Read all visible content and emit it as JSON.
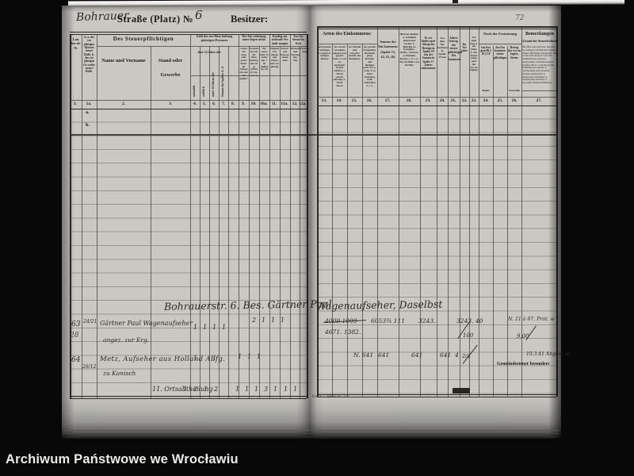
{
  "watermark": "Archiwum Państwowe we Wrocławiu",
  "page_number": "72",
  "left": {
    "title": {
      "street_hand": "Bohrauer",
      "street_print": "Straße (Platz) №",
      "house_hand": "6",
      "owner": "Besitzer:"
    },
    "hdr": {
      "c1": "Lau fen de №",
      "c1a": "№ a. der vor jährigen Klassen steuer Rolle, b. der vor jährigen Ge werbe steuer Rolle.",
      "g2": "Des Steuerpflichtigen",
      "c2": "Name und Vorname",
      "c3": "Stand oder Gewerbe",
      "g4": "Zahl der zur Haus haltung gehörigen Personen",
      "g4sub": "über 14 Jahre alte",
      "vcols": [
        "männlich",
        "weiblich",
        "unter 14 Jahren alte",
        "Summe der Spalten 4—6"
      ],
      "g8": "Der Ein schätzung unter liegen nicht:",
      "g10": "Künftig ent stehende Ver ände rungen",
      "g11": "Von der Steuer be freit",
      "dense": [
        "wegen Ver trags oder gesetz licher Be freiung ein zeln auf geführt",
        "Gesinde, das bei der Haus haltung mit ein ge schätzt ist (Sp. 4 u. 7)",
        "Per sonen über 14 Jahre (Sp. 7 ab züglich Sp. 10)",
        "Mögliche Ein nahme und Dienst holz ver gütung",
        "Besatz und Klassen steuer stufe",
        "Rechnung und Vierung (Sp. 10a)",
        "Frei stel lung"
      ]
    },
    "nums": [
      "1.",
      "1a.",
      "2.",
      "3.",
      "4.",
      "5.",
      "6.",
      "7.",
      "8.",
      "9.",
      "10.",
      "10a.",
      "11.",
      "11a.",
      "12.",
      "12a."
    ],
    "letters": [
      "a.",
      "b."
    ],
    "script_line": "Bohrauerstr. 6. Bes. Gärtner Paul",
    "rows": [
      {
        "no": "63",
        "no2": "28",
        "prev": "24/21",
        "name1": "Gärtner Paul Wagenaufseher",
        "name2": "angez. zur Erg.",
        "t": [
          "1",
          "1",
          "1",
          "1"
        ],
        "u": [
          "2",
          "1",
          "1",
          "1"
        ]
      },
      {
        "no": "64",
        "prev": "26/12",
        "name1": "Metz, Aufseher aus Holland Abfg.",
        "name2": "zu Kanisch",
        "t": [
          "1",
          "1"
        ],
        "v": [
          "1",
          "1",
          "1"
        ]
      }
    ],
    "summary": {
      "label": "11. Ortsabtheilung",
      "values": [
        "1",
        "2",
        "1",
        "2",
        "1",
        "1",
        "1",
        "3",
        "1",
        "1",
        "1"
      ]
    }
  },
  "right": {
    "hdr": {
      "g13": "Arten des Einkommens:",
      "dense": [
        "aus Kapital vermögen, a. ewigen, b. zeitigen Renten",
        "aus Grund vermögen, eigenen und gepach teten, so wie ver pachteten Grund stücken, a. Wirth schafts nutzung, b. Pacht zinsen",
        "aus Handel und Gewerbe einschl. des Bergbaues",
        "aus gewinn bringender Beschäfti gung, Rechten und Bezügen jeder Art, a. Lohn, b. in freier Wohnung, Geld, Viktualien u. s. w."
      ],
      "c17": "Summe des Ein kommens (Spalte 13, 14, 15, 16)",
      "c18": "Hiervon Abzüge: a. Schulden zinsen und Lasten, b. Beiträge zu Kranken-, Sterbe-, Witwen- u. Pensions kassen, c. u. s. w. bis zur Höhe von 50 Thlr.",
      "c19": "Es ver bleibt nach Abzug der Beträge in Spalte 18 von der Summe in Spalte 17 Jahres einkommen",
      "c20": "Von dem Ein kommen in Spalte 19 frei",
      "c21": "Jahres betrag des steuer pflichtigen Ein kommens",
      "c22": "Im Vor jahre",
      "c23": "Ver ände rung a. der Stufe, b. des Steuer satzes nach der Ver an lagung",
      "g24": "Nach der Festsetzung",
      "c24": "hat fest gestellt § 18 § 19",
      "c25": "des Ein kommen steuer pflichtigen",
      "c26": "Betrag der ver an lagten Steuer",
      "c24b": "Thaler",
      "c26b": "Groschen",
      "bem_title": "Bemerkungen",
      "bem_sub": "(Grund der Steuerfreiheit)",
      "bem_nb": "NB. Hier sind auch bei den einer ver anlagten schriftlichen Gründe Steuer pflichtigen anzugeben. Auf solche sind die §§ 17 des Ein kommensteuer gesetzes anzuwenden. Nachzuweisende Gründe durch: 1. Nachweis mit Erklärung des Wirths; 2. Veranlagung zum Gewerbe betriebe anderwärts; 3. anderweiter Wohnsitz; 4. Verpflegung auswärts; 5. besondere Dienstverhältnisse."
    },
    "nums": [
      "13.",
      "14.",
      "15.",
      "16.",
      "17.",
      "18.",
      "19.",
      "20.",
      "21.",
      "22.",
      "23.",
      "24.",
      "25.",
      "26.",
      "27."
    ],
    "script_line": "Wagenaufseher, Daselbst",
    "rows": [
      {
        "a": "4009 1009",
        "a2": "4671. 1382.",
        "b": "6053¾ 111",
        "c": "3243.",
        "d": "3243. 40",
        "e": "100",
        "f": "N. 11 à 67. Prot. w",
        "g": "9,00"
      },
      {
        "a": "N. 641",
        "b": "641",
        "c": "641",
        "d": "641",
        "e": "4",
        "f": "2/4",
        "g": "10.3.41 Angem. w",
        "note": "Gemeindesteuer besonders"
      }
    ],
    "imprint": "Druck v. Weber No. 127."
  }
}
